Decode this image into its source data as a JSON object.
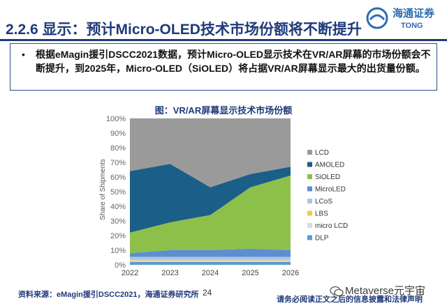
{
  "slide": {
    "title": "2.2.6 显示：预计Micro-OLED技术市场份额将不断提升",
    "logo_text": "海通证券",
    "logo_subtext": "TONG"
  },
  "callout": {
    "bullet": "•",
    "text": "根据eMagin援引DSCC2021数据，预计Micro-OLED显示技术在VR/AR屏幕的市场份额会不断提升，到2025年，Micro-OLED（SiOLED）将占据VR/AR屏幕显示最大的出货量份额。"
  },
  "footer": {
    "source": "资料来源：eMagin援引DSCC2021，海通证券研究所",
    "page": "24",
    "note": "请务必阅读正文之后的信息披露和法律声明",
    "watermark": "Metaverse元宇宙"
  },
  "chart_data": {
    "type": "area",
    "stacked": true,
    "title": "图：VR/AR屏幕显示技术市场份额",
    "xlabel": "",
    "ylabel": "Share of Shipments",
    "x": [
      "2022",
      "2023",
      "2024",
      "2025",
      "2026"
    ],
    "ylim": [
      0,
      100
    ],
    "yticks": [
      "0%",
      "10%",
      "20%",
      "30%",
      "40%",
      "50%",
      "60%",
      "70%",
      "80%",
      "90%",
      "100%"
    ],
    "legend_position": "right",
    "series": [
      {
        "name": "DLP",
        "color": "#5b9bd5",
        "values": [
          2,
          2,
          2,
          2,
          2
        ]
      },
      {
        "name": "micro LCD",
        "color": "#d6dce4",
        "values": [
          1,
          1,
          1,
          1,
          1
        ]
      },
      {
        "name": "LBS",
        "color": "#f2c94c",
        "values": [
          0.5,
          0.5,
          0.5,
          0.5,
          0.5
        ]
      },
      {
        "name": "LCoS",
        "color": "#a9c4e8",
        "values": [
          2,
          2,
          2,
          2,
          2
        ]
      },
      {
        "name": "MicroLED",
        "color": "#5b8fd1",
        "values": [
          2.5,
          4.5,
          4.5,
          5.5,
          4.5
        ]
      },
      {
        "name": "SiOLED",
        "color": "#8dc04a",
        "values": [
          14,
          19,
          24,
          42,
          51
        ]
      },
      {
        "name": "AMOLED",
        "color": "#1b5e88",
        "values": [
          42,
          40,
          19,
          9,
          6
        ]
      },
      {
        "name": "LCD",
        "color": "#9a9a9a",
        "values": [
          36,
          31,
          47,
          38,
          33
        ]
      }
    ]
  }
}
